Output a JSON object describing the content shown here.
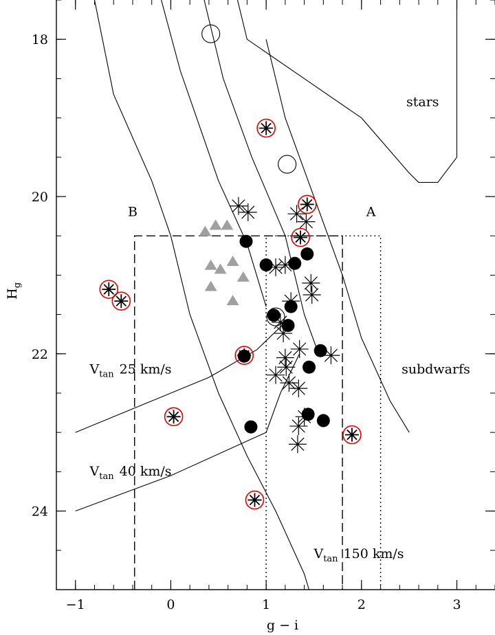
{
  "chart_data": {
    "type": "scatter",
    "xlabel": "g − i",
    "ylabel": "H",
    "ylabel_sub": "g",
    "xlim": [
      -1.2,
      3.4
    ],
    "ylim": [
      25.0,
      17.5
    ],
    "y_inverted": true,
    "x_ticks": [
      -1,
      0,
      1,
      2,
      3
    ],
    "x_tick_labels": [
      "−1",
      "0",
      "1",
      "2",
      "3"
    ],
    "y_ticks": [
      18,
      20,
      22,
      24
    ],
    "y_tick_labels": [
      "18",
      "20",
      "22",
      "24"
    ],
    "annotations": [
      {
        "text": "stars",
        "x": 2.47,
        "y": 18.85
      },
      {
        "text": "subdwarfs",
        "x": 2.42,
        "y": 22.25
      },
      {
        "text": "A",
        "x": 2.05,
        "y": 20.25
      },
      {
        "text": "B",
        "x": -0.45,
        "y": 20.25
      },
      {
        "text": "V",
        "sub": "tan",
        "rest": "25 km/s",
        "x": -0.85,
        "y": 22.25
      },
      {
        "text": "V",
        "sub": "tan",
        "rest": "40 km/s",
        "x": -0.85,
        "y": 23.55
      },
      {
        "text": "V",
        "sub": "tan",
        "rest": "150 km/s",
        "x": 1.5,
        "y": 24.6
      }
    ],
    "curves": [
      {
        "name": "left-boundary",
        "points": [
          [
            -0.8,
            17.5
          ],
          [
            -0.6,
            18.7
          ],
          [
            -0.2,
            19.8
          ],
          [
            0.0,
            20.5
          ],
          [
            0.2,
            21.5
          ],
          [
            0.5,
            22.5
          ],
          [
            0.8,
            23.3
          ],
          [
            1.1,
            24.0
          ],
          [
            1.4,
            24.8
          ],
          [
            1.45,
            25.0
          ]
        ]
      },
      {
        "name": "track-2",
        "points": [
          [
            -0.1,
            17.5
          ],
          [
            0.1,
            18.4
          ],
          [
            0.5,
            19.8
          ],
          [
            0.8,
            20.6
          ],
          [
            1.0,
            21.4
          ]
        ]
      },
      {
        "name": "track-3",
        "points": [
          [
            0.35,
            17.5
          ],
          [
            0.55,
            18.5
          ],
          [
            0.85,
            19.5
          ],
          [
            1.2,
            20.5
          ],
          [
            1.4,
            21.5
          ],
          [
            1.55,
            22.0
          ]
        ]
      },
      {
        "name": "stars-boundary",
        "points": [
          [
            0.7,
            17.5
          ],
          [
            0.8,
            18.0
          ],
          [
            1.4,
            18.5
          ],
          [
            2.0,
            19.0
          ],
          [
            2.5,
            19.7
          ],
          [
            2.6,
            19.82
          ],
          [
            2.8,
            19.82
          ],
          [
            3.0,
            19.5
          ],
          [
            3.0,
            17.5
          ]
        ]
      },
      {
        "name": "subdwarf-line",
        "points": [
          [
            1.0,
            18.0
          ],
          [
            1.2,
            19.0
          ],
          [
            1.5,
            20.0
          ],
          [
            1.8,
            21.0
          ],
          [
            2.0,
            21.8
          ],
          [
            2.3,
            22.6
          ],
          [
            2.5,
            23.0
          ]
        ]
      },
      {
        "name": "vtan-25",
        "points": [
          [
            -1.0,
            23.0
          ],
          [
            -0.4,
            22.7
          ],
          [
            0.4,
            22.3
          ],
          [
            0.9,
            21.95
          ],
          [
            1.2,
            21.6
          ]
        ]
      },
      {
        "name": "vtan-40",
        "points": [
          [
            -1.0,
            24.0
          ],
          [
            0.0,
            23.55
          ],
          [
            1.0,
            23.0
          ],
          [
            1.15,
            22.5
          ],
          [
            1.35,
            22.0
          ]
        ]
      }
    ],
    "regions": [
      {
        "name": "B",
        "style": "dashed",
        "x0": -0.38,
        "x1": 1.8,
        "y0": 20.5,
        "y1": 25.0
      },
      {
        "name": "A",
        "style": "dotted",
        "x0": 1.0,
        "x1": 2.2,
        "y0": 20.5,
        "y1": 25.0
      }
    ],
    "series": [
      {
        "marker": "triangle",
        "color": "#a0a0a0",
        "points": [
          [
            0.36,
            20.45
          ],
          [
            0.47,
            20.37
          ],
          [
            0.59,
            20.37
          ],
          [
            0.42,
            20.88
          ],
          [
            0.52,
            20.93
          ],
          [
            0.65,
            20.83
          ],
          [
            0.42,
            21.15
          ],
          [
            0.76,
            21.03
          ],
          [
            0.65,
            21.33
          ]
        ]
      },
      {
        "marker": "filled-circle",
        "color": "#000000",
        "points": [
          [
            0.79,
            20.57
          ],
          [
            1.0,
            20.87
          ],
          [
            1.3,
            20.85
          ],
          [
            1.43,
            20.73
          ],
          [
            1.26,
            21.4
          ],
          [
            1.08,
            21.51
          ],
          [
            1.23,
            21.64
          ],
          [
            0.77,
            22.03
          ],
          [
            1.57,
            21.96
          ],
          [
            1.45,
            22.17
          ],
          [
            1.44,
            22.77
          ],
          [
            1.6,
            22.85
          ],
          [
            0.84,
            22.93
          ]
        ]
      },
      {
        "marker": "asterisk",
        "color": "#000000",
        "points": [
          [
            0.71,
            20.12
          ],
          [
            0.81,
            20.2
          ],
          [
            1.32,
            20.22
          ],
          [
            1.42,
            20.32
          ],
          [
            1.1,
            20.9
          ],
          [
            1.2,
            20.87
          ],
          [
            1.47,
            21.1
          ],
          [
            1.48,
            21.25
          ],
          [
            1.26,
            21.33
          ],
          [
            1.15,
            21.6
          ],
          [
            1.18,
            21.74
          ],
          [
            1.35,
            21.94
          ],
          [
            1.68,
            22.02
          ],
          [
            1.2,
            22.05
          ],
          [
            1.21,
            22.17
          ],
          [
            1.1,
            22.27
          ],
          [
            1.24,
            22.37
          ],
          [
            1.34,
            22.44
          ],
          [
            1.34,
            22.92
          ],
          [
            1.4,
            22.8
          ],
          [
            1.33,
            23.15
          ]
        ]
      },
      {
        "marker": "open-circle",
        "color": "#000000",
        "points": [
          [
            0.42,
            17.93
          ],
          [
            1.22,
            19.59
          ],
          [
            1.1,
            21.53
          ]
        ]
      },
      {
        "marker": "red-circled-asterisk",
        "color": "#dd0000",
        "points": [
          [
            1.0,
            19.13
          ],
          [
            1.43,
            20.1
          ],
          [
            1.36,
            20.52
          ],
          [
            -0.65,
            21.18
          ],
          [
            -0.52,
            21.33
          ],
          [
            0.77,
            22.02
          ],
          [
            0.03,
            22.8
          ],
          [
            1.9,
            23.03
          ],
          [
            0.88,
            23.86
          ]
        ]
      }
    ]
  }
}
